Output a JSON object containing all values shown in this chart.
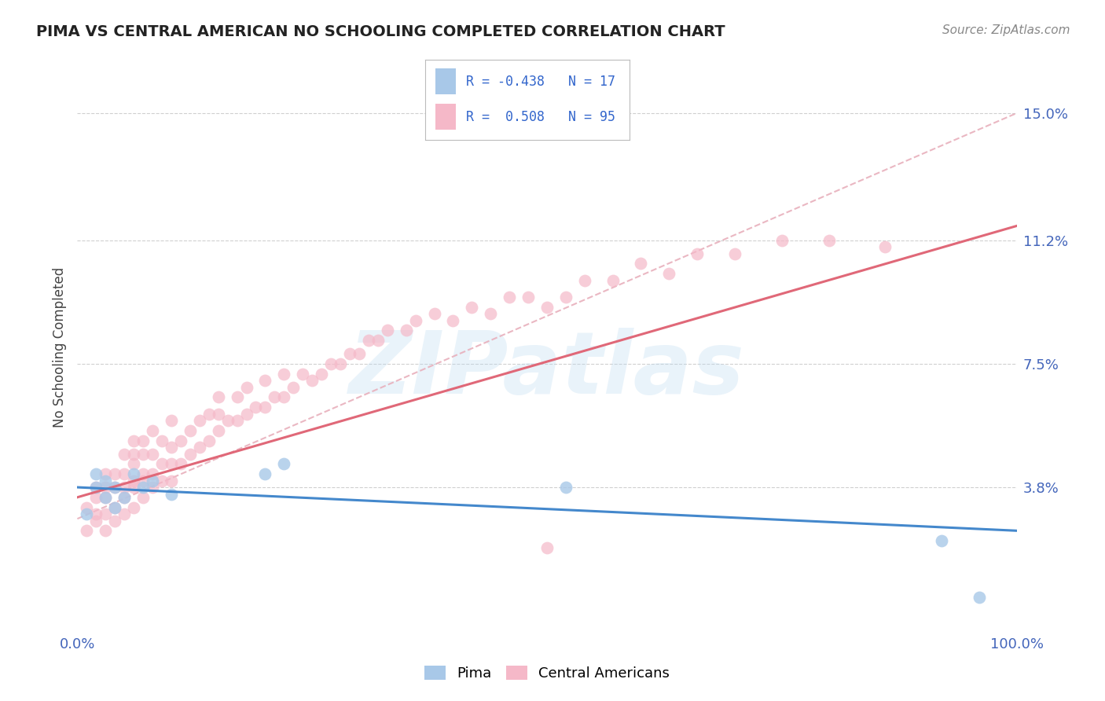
{
  "title": "PIMA VS CENTRAL AMERICAN NO SCHOOLING COMPLETED CORRELATION CHART",
  "source": "Source: ZipAtlas.com",
  "ylabel": "No Schooling Completed",
  "xlim": [
    0.0,
    1.0
  ],
  "ylim": [
    -0.005,
    0.165
  ],
  "xticks": [
    0.0,
    0.25,
    0.5,
    0.75,
    1.0
  ],
  "xticklabels": [
    "0.0%",
    "",
    "",
    "",
    "100.0%"
  ],
  "ytick_positions": [
    0.038,
    0.075,
    0.112,
    0.15
  ],
  "ytick_labels": [
    "3.8%",
    "7.5%",
    "11.2%",
    "15.0%"
  ],
  "background_color": "#ffffff",
  "grid_color": "#d0d0d0",
  "pima_scatter_color": "#a8c8e8",
  "central_scatter_color": "#f5b8c8",
  "pima_line_color": "#4488cc",
  "central_line_color": "#e06878",
  "central_conf_color": "#e8b0bc",
  "R_pima": -0.438,
  "N_pima": 17,
  "R_central": 0.508,
  "N_central": 95,
  "watermark": "ZIPatlas",
  "pima_x": [
    0.01,
    0.02,
    0.02,
    0.03,
    0.03,
    0.04,
    0.04,
    0.05,
    0.06,
    0.07,
    0.08,
    0.1,
    0.2,
    0.22,
    0.52,
    0.92,
    0.96
  ],
  "pima_y": [
    0.03,
    0.038,
    0.042,
    0.035,
    0.04,
    0.032,
    0.038,
    0.035,
    0.042,
    0.038,
    0.04,
    0.036,
    0.042,
    0.045,
    0.038,
    0.022,
    0.005
  ],
  "central_x": [
    0.01,
    0.01,
    0.02,
    0.02,
    0.02,
    0.02,
    0.03,
    0.03,
    0.03,
    0.03,
    0.03,
    0.04,
    0.04,
    0.04,
    0.04,
    0.05,
    0.05,
    0.05,
    0.05,
    0.05,
    0.06,
    0.06,
    0.06,
    0.06,
    0.06,
    0.06,
    0.07,
    0.07,
    0.07,
    0.07,
    0.07,
    0.08,
    0.08,
    0.08,
    0.08,
    0.09,
    0.09,
    0.09,
    0.1,
    0.1,
    0.1,
    0.1,
    0.11,
    0.11,
    0.12,
    0.12,
    0.13,
    0.13,
    0.14,
    0.14,
    0.15,
    0.15,
    0.15,
    0.16,
    0.17,
    0.17,
    0.18,
    0.18,
    0.19,
    0.2,
    0.2,
    0.21,
    0.22,
    0.22,
    0.23,
    0.24,
    0.25,
    0.26,
    0.27,
    0.28,
    0.29,
    0.3,
    0.31,
    0.32,
    0.33,
    0.35,
    0.36,
    0.38,
    0.4,
    0.42,
    0.44,
    0.46,
    0.48,
    0.5,
    0.52,
    0.54,
    0.57,
    0.6,
    0.63,
    0.66,
    0.7,
    0.75,
    0.8,
    0.86,
    0.5
  ],
  "central_y": [
    0.025,
    0.032,
    0.028,
    0.03,
    0.035,
    0.038,
    0.025,
    0.03,
    0.035,
    0.038,
    0.042,
    0.028,
    0.032,
    0.038,
    0.042,
    0.03,
    0.035,
    0.038,
    0.042,
    0.048,
    0.032,
    0.038,
    0.04,
    0.045,
    0.048,
    0.052,
    0.035,
    0.04,
    0.042,
    0.048,
    0.052,
    0.038,
    0.042,
    0.048,
    0.055,
    0.04,
    0.045,
    0.052,
    0.04,
    0.045,
    0.05,
    0.058,
    0.045,
    0.052,
    0.048,
    0.055,
    0.05,
    0.058,
    0.052,
    0.06,
    0.055,
    0.06,
    0.065,
    0.058,
    0.058,
    0.065,
    0.06,
    0.068,
    0.062,
    0.062,
    0.07,
    0.065,
    0.065,
    0.072,
    0.068,
    0.072,
    0.07,
    0.072,
    0.075,
    0.075,
    0.078,
    0.078,
    0.082,
    0.082,
    0.085,
    0.085,
    0.088,
    0.09,
    0.088,
    0.092,
    0.09,
    0.095,
    0.095,
    0.092,
    0.095,
    0.1,
    0.1,
    0.105,
    0.102,
    0.108,
    0.108,
    0.112,
    0.112,
    0.11,
    0.02
  ]
}
